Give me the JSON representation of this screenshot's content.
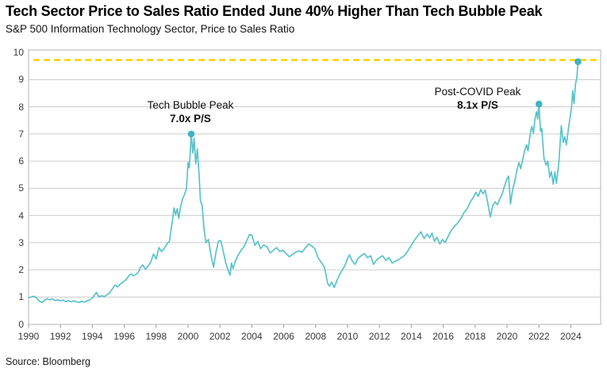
{
  "header": {
    "title": "Tech Sector Price to Sales Ratio Ended June 40% Higher Than Tech Bubble Peak",
    "subtitle": "S&P 500 Information Technology Sector, Price to Sales Ratio"
  },
  "footer": {
    "source": "Source: Bloomberg"
  },
  "chart_data": {
    "type": "line",
    "title": "Tech Sector Price to Sales Ratio Ended June 40% Higher Than Tech Bubble Peak",
    "subtitle": "S&P 500 Information Technology Sector, Price to Sales Ratio",
    "xlabel": "",
    "ylabel": "Price to Sales Ratio",
    "x_range": [
      1990,
      2025.87
    ],
    "y_range": [
      0,
      10
    ],
    "x_ticks": [
      1990,
      1992,
      1994,
      1996,
      1998,
      2000,
      2002,
      2004,
      2006,
      2008,
      2010,
      2012,
      2014,
      2016,
      2018,
      2020,
      2022,
      2024
    ],
    "y_ticks": [
      0,
      1,
      2,
      3,
      4,
      5,
      6,
      7,
      8,
      9,
      10
    ],
    "grid": "horizontal",
    "legend": "none",
    "reference_line": {
      "value": 9.72,
      "style": "dashed"
    },
    "annotations": [
      {
        "line1": "Tech Bubble Peak",
        "line2": "7.0x P/S",
        "x": 2000.2,
        "y": 7.0
      },
      {
        "line1": "Post-COVID Peak",
        "line2": "8.1x P/S",
        "x": 2022.0,
        "y": 8.1
      }
    ],
    "markers": [
      [
        2000.2,
        7.0
      ],
      [
        2022.0,
        8.1
      ],
      [
        2024.45,
        9.66
      ]
    ],
    "colors": {
      "line": "#5BC2CA",
      "marker": "#3FB3C3",
      "dashed": "#FFD200",
      "grid": "#CCCCCC",
      "border": "#B5B5B5"
    },
    "series": [
      {
        "name": "S&P 500 Information Technology Sector P/S",
        "points": [
          [
            1990.0,
            0.98
          ],
          [
            1990.17,
            1.0
          ],
          [
            1990.33,
            1.03
          ],
          [
            1990.5,
            0.97
          ],
          [
            1990.67,
            0.85
          ],
          [
            1990.83,
            0.8
          ],
          [
            1991.0,
            0.88
          ],
          [
            1991.17,
            0.94
          ],
          [
            1991.33,
            0.9
          ],
          [
            1991.5,
            0.93
          ],
          [
            1991.67,
            0.87
          ],
          [
            1991.83,
            0.9
          ],
          [
            1992.0,
            0.86
          ],
          [
            1992.17,
            0.89
          ],
          [
            1992.33,
            0.83
          ],
          [
            1992.5,
            0.87
          ],
          [
            1992.67,
            0.82
          ],
          [
            1992.83,
            0.86
          ],
          [
            1993.0,
            0.83
          ],
          [
            1993.17,
            0.8
          ],
          [
            1993.33,
            0.84
          ],
          [
            1993.5,
            0.81
          ],
          [
            1993.67,
            0.86
          ],
          [
            1993.83,
            0.9
          ],
          [
            1994.0,
            0.96
          ],
          [
            1994.17,
            1.1
          ],
          [
            1994.25,
            1.17
          ],
          [
            1994.42,
            1.0
          ],
          [
            1994.58,
            1.05
          ],
          [
            1994.75,
            1.02
          ],
          [
            1994.92,
            1.08
          ],
          [
            1995.08,
            1.15
          ],
          [
            1995.25,
            1.3
          ],
          [
            1995.42,
            1.44
          ],
          [
            1995.58,
            1.37
          ],
          [
            1995.75,
            1.48
          ],
          [
            1995.92,
            1.55
          ],
          [
            1996.08,
            1.62
          ],
          [
            1996.25,
            1.75
          ],
          [
            1996.42,
            1.85
          ],
          [
            1996.58,
            1.78
          ],
          [
            1996.75,
            1.84
          ],
          [
            1996.92,
            1.95
          ],
          [
            1997.0,
            2.08
          ],
          [
            1997.17,
            2.18
          ],
          [
            1997.33,
            2.02
          ],
          [
            1997.5,
            2.15
          ],
          [
            1997.67,
            2.3
          ],
          [
            1997.83,
            2.58
          ],
          [
            1998.0,
            2.4
          ],
          [
            1998.17,
            2.82
          ],
          [
            1998.33,
            2.68
          ],
          [
            1998.5,
            2.78
          ],
          [
            1998.67,
            2.95
          ],
          [
            1998.83,
            3.05
          ],
          [
            1999.0,
            3.72
          ],
          [
            1999.12,
            4.28
          ],
          [
            1999.22,
            4.03
          ],
          [
            1999.32,
            4.25
          ],
          [
            1999.42,
            3.9
          ],
          [
            1999.53,
            4.33
          ],
          [
            1999.65,
            4.6
          ],
          [
            1999.78,
            4.78
          ],
          [
            1999.9,
            5.0
          ],
          [
            2000.0,
            5.95
          ],
          [
            2000.08,
            5.75
          ],
          [
            2000.2,
            7.0
          ],
          [
            2000.3,
            6.3
          ],
          [
            2000.38,
            6.85
          ],
          [
            2000.48,
            5.9
          ],
          [
            2000.58,
            6.45
          ],
          [
            2000.68,
            5.6
          ],
          [
            2000.78,
            4.5
          ],
          [
            2000.88,
            4.4
          ],
          [
            2001.0,
            3.5
          ],
          [
            2001.12,
            3.0
          ],
          [
            2001.28,
            3.12
          ],
          [
            2001.45,
            2.5
          ],
          [
            2001.6,
            2.1
          ],
          [
            2001.75,
            2.65
          ],
          [
            2001.9,
            3.05
          ],
          [
            2002.05,
            3.08
          ],
          [
            2002.2,
            2.7
          ],
          [
            2002.35,
            2.3
          ],
          [
            2002.5,
            2.0
          ],
          [
            2002.63,
            1.8
          ],
          [
            2002.72,
            2.25
          ],
          [
            2002.82,
            2.05
          ],
          [
            2002.95,
            2.3
          ],
          [
            2003.1,
            2.5
          ],
          [
            2003.3,
            2.7
          ],
          [
            2003.5,
            2.85
          ],
          [
            2003.7,
            3.1
          ],
          [
            2003.85,
            3.3
          ],
          [
            2004.0,
            3.28
          ],
          [
            2004.2,
            2.9
          ],
          [
            2004.37,
            3.05
          ],
          [
            2004.55,
            2.78
          ],
          [
            2004.75,
            2.92
          ],
          [
            2004.95,
            2.85
          ],
          [
            2005.15,
            2.62
          ],
          [
            2005.35,
            2.72
          ],
          [
            2005.55,
            2.82
          ],
          [
            2005.75,
            2.68
          ],
          [
            2005.95,
            2.72
          ],
          [
            2006.15,
            2.6
          ],
          [
            2006.35,
            2.48
          ],
          [
            2006.55,
            2.57
          ],
          [
            2006.75,
            2.65
          ],
          [
            2006.95,
            2.7
          ],
          [
            2007.15,
            2.65
          ],
          [
            2007.35,
            2.8
          ],
          [
            2007.55,
            2.95
          ],
          [
            2007.75,
            2.88
          ],
          [
            2007.95,
            2.78
          ],
          [
            2008.15,
            2.45
          ],
          [
            2008.35,
            2.28
          ],
          [
            2008.55,
            2.1
          ],
          [
            2008.75,
            1.5
          ],
          [
            2008.88,
            1.4
          ],
          [
            2009.0,
            1.55
          ],
          [
            2009.17,
            1.35
          ],
          [
            2009.33,
            1.6
          ],
          [
            2009.5,
            1.82
          ],
          [
            2009.67,
            2.0
          ],
          [
            2009.83,
            2.15
          ],
          [
            2010.0,
            2.42
          ],
          [
            2010.12,
            2.55
          ],
          [
            2010.3,
            2.32
          ],
          [
            2010.48,
            2.2
          ],
          [
            2010.65,
            2.42
          ],
          [
            2010.85,
            2.52
          ],
          [
            2011.05,
            2.6
          ],
          [
            2011.25,
            2.45
          ],
          [
            2011.45,
            2.52
          ],
          [
            2011.63,
            2.2
          ],
          [
            2011.8,
            2.35
          ],
          [
            2012.0,
            2.45
          ],
          [
            2012.2,
            2.52
          ],
          [
            2012.4,
            2.35
          ],
          [
            2012.6,
            2.45
          ],
          [
            2012.8,
            2.25
          ],
          [
            2013.0,
            2.32
          ],
          [
            2013.2,
            2.38
          ],
          [
            2013.4,
            2.45
          ],
          [
            2013.6,
            2.55
          ],
          [
            2013.8,
            2.72
          ],
          [
            2014.0,
            2.9
          ],
          [
            2014.2,
            3.1
          ],
          [
            2014.4,
            3.25
          ],
          [
            2014.6,
            3.4
          ],
          [
            2014.8,
            3.15
          ],
          [
            2015.0,
            3.32
          ],
          [
            2015.15,
            3.18
          ],
          [
            2015.3,
            3.35
          ],
          [
            2015.45,
            3.05
          ],
          [
            2015.6,
            3.2
          ],
          [
            2015.78,
            2.95
          ],
          [
            2015.95,
            3.12
          ],
          [
            2016.12,
            3.0
          ],
          [
            2016.3,
            3.22
          ],
          [
            2016.5,
            3.45
          ],
          [
            2016.7,
            3.6
          ],
          [
            2016.9,
            3.72
          ],
          [
            2017.1,
            3.88
          ],
          [
            2017.3,
            4.1
          ],
          [
            2017.5,
            4.25
          ],
          [
            2017.7,
            4.5
          ],
          [
            2017.9,
            4.68
          ],
          [
            2018.05,
            4.85
          ],
          [
            2018.2,
            4.7
          ],
          [
            2018.35,
            4.95
          ],
          [
            2018.5,
            4.8
          ],
          [
            2018.63,
            4.93
          ],
          [
            2018.78,
            4.5
          ],
          [
            2018.95,
            3.95
          ],
          [
            2019.1,
            4.35
          ],
          [
            2019.25,
            4.5
          ],
          [
            2019.4,
            4.4
          ],
          [
            2019.55,
            4.62
          ],
          [
            2019.7,
            4.8
          ],
          [
            2019.85,
            5.1
          ],
          [
            2020.0,
            5.35
          ],
          [
            2020.1,
            5.45
          ],
          [
            2020.22,
            4.42
          ],
          [
            2020.35,
            4.95
          ],
          [
            2020.5,
            5.3
          ],
          [
            2020.62,
            5.68
          ],
          [
            2020.75,
            5.95
          ],
          [
            2020.85,
            5.72
          ],
          [
            2021.0,
            6.1
          ],
          [
            2021.12,
            6.42
          ],
          [
            2021.22,
            6.6
          ],
          [
            2021.32,
            6.38
          ],
          [
            2021.45,
            7.0
          ],
          [
            2021.55,
            7.28
          ],
          [
            2021.65,
            7.02
          ],
          [
            2021.75,
            7.55
          ],
          [
            2021.85,
            7.82
          ],
          [
            2021.92,
            7.55
          ],
          [
            2022.0,
            8.1
          ],
          [
            2022.1,
            7.1
          ],
          [
            2022.18,
            7.2
          ],
          [
            2022.32,
            6.1
          ],
          [
            2022.45,
            5.85
          ],
          [
            2022.55,
            6.0
          ],
          [
            2022.68,
            5.4
          ],
          [
            2022.78,
            5.62
          ],
          [
            2022.9,
            5.15
          ],
          [
            2023.0,
            5.6
          ],
          [
            2023.1,
            5.18
          ],
          [
            2023.25,
            5.95
          ],
          [
            2023.4,
            7.3
          ],
          [
            2023.52,
            6.68
          ],
          [
            2023.62,
            6.9
          ],
          [
            2023.72,
            6.6
          ],
          [
            2023.85,
            7.2
          ],
          [
            2023.95,
            7.6
          ],
          [
            2024.05,
            8.0
          ],
          [
            2024.12,
            8.6
          ],
          [
            2024.2,
            8.12
          ],
          [
            2024.3,
            8.85
          ],
          [
            2024.38,
            9.1
          ],
          [
            2024.45,
            9.66
          ]
        ]
      }
    ]
  }
}
